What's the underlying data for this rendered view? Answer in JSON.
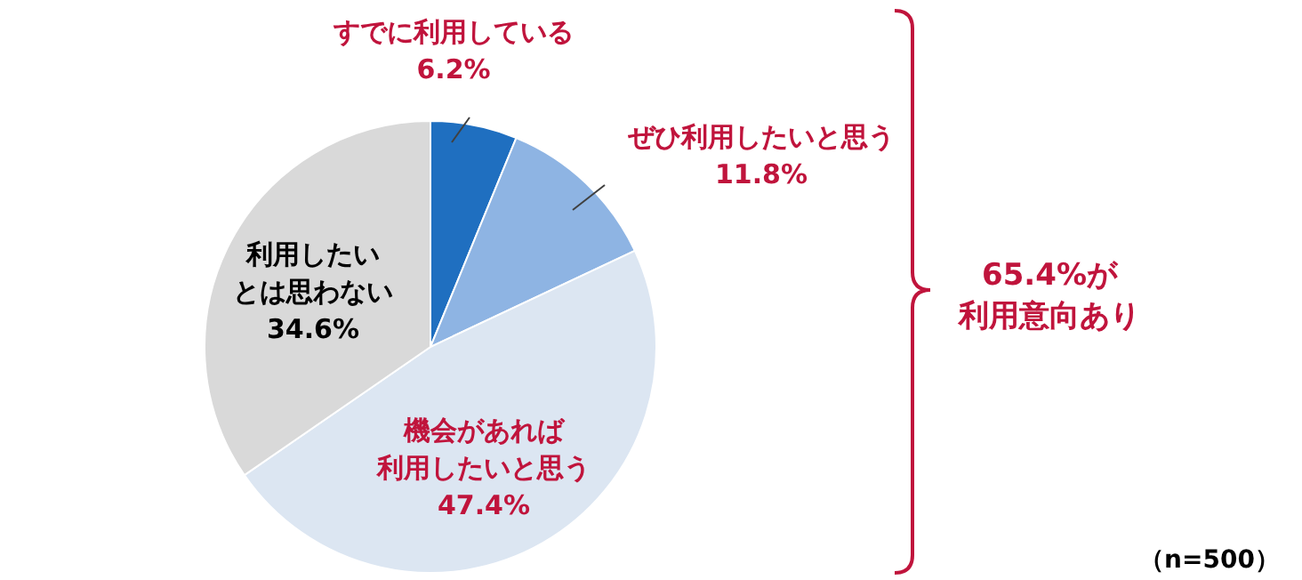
{
  "chart_data": {
    "type": "pie",
    "categories": [
      "すでに利用している",
      "ぜひ利用したいと思う",
      "機会があれば利用したいと思う",
      "利用したいとは思わない"
    ],
    "values": [
      6.2,
      11.8,
      47.4,
      34.6
    ],
    "colors": [
      "#1f6fc0",
      "#8eb4e3",
      "#dce6f2",
      "#d9d9d9"
    ],
    "value_labels": [
      "6.2%",
      "11.8%",
      "47.4%",
      "34.6%"
    ],
    "annotations": [
      "65.4%が利用意向あり",
      "（n=500）"
    ]
  }
}
